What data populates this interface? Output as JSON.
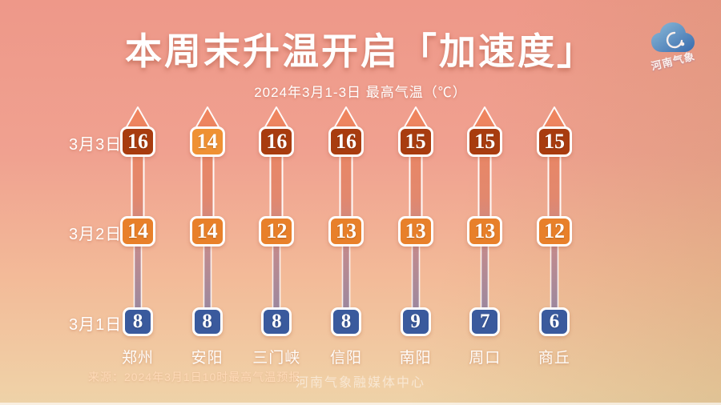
{
  "page": {
    "title": "本周末升温开启「加速度」",
    "subtitle": "2024年3月1-3日 最高气温（℃）",
    "source": "来源：2024年3月1日10时最高气温预报",
    "watermark": "河南气象融媒体中心",
    "logo_text": "河南气象"
  },
  "chart_data": {
    "type": "bar",
    "title": "本周末升温开启「加速度」",
    "subtitle": "2024年3月1-3日 最高气温（℃）",
    "unit": "℃",
    "categories": [
      "郑州",
      "安阳",
      "三门峡",
      "信阳",
      "南阳",
      "周口",
      "商丘"
    ],
    "series": [
      {
        "name": "3月3日",
        "values": [
          16,
          14,
          16,
          16,
          15,
          15,
          15
        ]
      },
      {
        "name": "3月2日",
        "values": [
          14,
          14,
          12,
          13,
          13,
          13,
          12
        ]
      },
      {
        "name": "3月1日",
        "values": [
          8,
          8,
          8,
          8,
          9,
          7,
          6
        ]
      }
    ],
    "layout": {
      "orientation": "vertical-rising-arrows",
      "legend": "none",
      "grid": false,
      "row_labels_position": "left"
    },
    "hot_threshold": 15,
    "colors": {
      "day3_hot_box": "#a83c0f",
      "day3_warm_box": "#ef9133",
      "day2_box": "#e8802a",
      "day1_box": "#3a5a9d",
      "arrow_top": "#f0845c",
      "arrow_bottom": "#8a87a6",
      "bg_top": "#ee9889",
      "bg_bottom": "#f0d0a6",
      "logo_blue": "#1b63b5"
    }
  }
}
